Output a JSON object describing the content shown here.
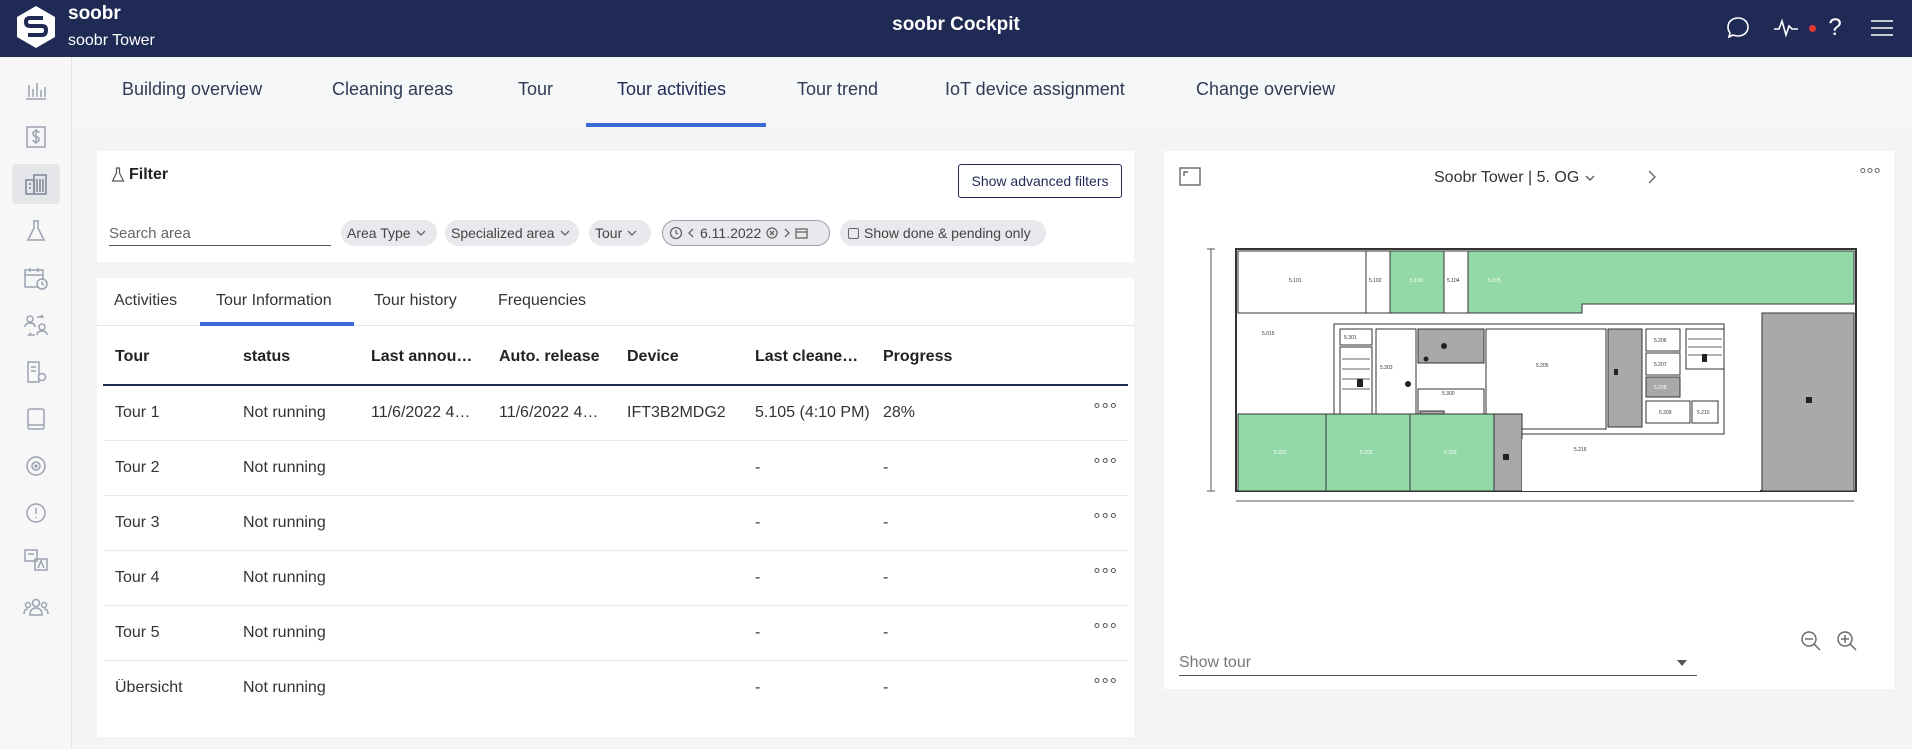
{
  "header": {
    "brand": "soobr",
    "building": "soobr Tower",
    "app_title": "soobr Cockpit",
    "help_label": "?",
    "status_dot_color": "#e53935"
  },
  "sidebar": {
    "items": [
      {
        "icon": "bar-chart-icon"
      },
      {
        "icon": "dollar-icon"
      },
      {
        "icon": "building-icon",
        "active": true
      },
      {
        "icon": "flask-icon"
      },
      {
        "icon": "calendar-clock-icon"
      },
      {
        "icon": "users-swap-icon"
      },
      {
        "icon": "document-settings-icon"
      },
      {
        "icon": "tablet-icon"
      },
      {
        "icon": "sensor-icon"
      },
      {
        "icon": "alert-icon"
      },
      {
        "icon": "translate-icon"
      },
      {
        "icon": "team-icon"
      }
    ]
  },
  "tabs": [
    {
      "label": "Building overview"
    },
    {
      "label": "Cleaning areas"
    },
    {
      "label": "Tour"
    },
    {
      "label": "Tour activities",
      "active": true
    },
    {
      "label": "Tour trend"
    },
    {
      "label": "IoT device assignment"
    },
    {
      "label": "Change overview"
    }
  ],
  "filter": {
    "title": "Filter",
    "advanced_button": "Show advanced filters",
    "search_placeholder": "Search area",
    "chips": {
      "area_type": "Area Type",
      "specialized_area": "Specialized area",
      "tour": "Tour",
      "date": "6.11.2022",
      "done_pending": "Show done & pending only"
    }
  },
  "subtabs": [
    {
      "label": "Activities"
    },
    {
      "label": "Tour Information",
      "active": true
    },
    {
      "label": "Tour history"
    },
    {
      "label": "Frequencies"
    }
  ],
  "table": {
    "columns": [
      "Tour",
      "status",
      "Last announ…",
      "Auto. release",
      "Device",
      "Last cleane…",
      "Progress"
    ],
    "rows": [
      {
        "tour": "Tour 1",
        "status": "Not running",
        "last_announced": "11/6/2022 4…",
        "auto_release": "11/6/2022 4…",
        "device": "IFT3B2MDG2",
        "last_cleaned": "5.105 (4:10 PM)",
        "progress": "28%"
      },
      {
        "tour": "Tour 2",
        "status": "Not running",
        "last_announced": "",
        "auto_release": "",
        "device": "",
        "last_cleaned": "-",
        "progress": "-"
      },
      {
        "tour": "Tour 3",
        "status": "Not running",
        "last_announced": "",
        "auto_release": "",
        "device": "",
        "last_cleaned": "-",
        "progress": "-"
      },
      {
        "tour": "Tour 4",
        "status": "Not running",
        "last_announced": "",
        "auto_release": "",
        "device": "",
        "last_cleaned": "-",
        "progress": "-"
      },
      {
        "tour": "Tour 5",
        "status": "Not running",
        "last_announced": "",
        "auto_release": "",
        "device": "",
        "last_cleaned": "-",
        "progress": "-"
      },
      {
        "tour": "Übersicht",
        "status": "Not running",
        "last_announced": "",
        "auto_release": "",
        "device": "",
        "last_cleaned": "-",
        "progress": "-"
      }
    ],
    "row_menu": "°°°"
  },
  "map": {
    "title": "Soobr Tower | 5. OG",
    "show_tour_placeholder": "Show tour",
    "menu": "°°°",
    "colors": {
      "cleaned": "#93d9a8",
      "restricted": "#a9a9a9",
      "wall": "#333333"
    },
    "rooms": {
      "r5101": "5.101",
      "r5102": "5.102",
      "r5103": "5.103",
      "r5104": "5.104",
      "r5105": "5.105",
      "r5015": "5.015",
      "r5301": "5.301",
      "r5303": "5.303",
      "r5300": "5.300",
      "r5205": "5.205",
      "r5206": "5.206",
      "r5207": "5.207",
      "r5208": "5.208",
      "r5209": "5.209",
      "r5210": "5.210",
      "r5201": "5.201",
      "r5202": "5.202",
      "r5203": "5.203",
      "r5216": "5.216"
    }
  }
}
